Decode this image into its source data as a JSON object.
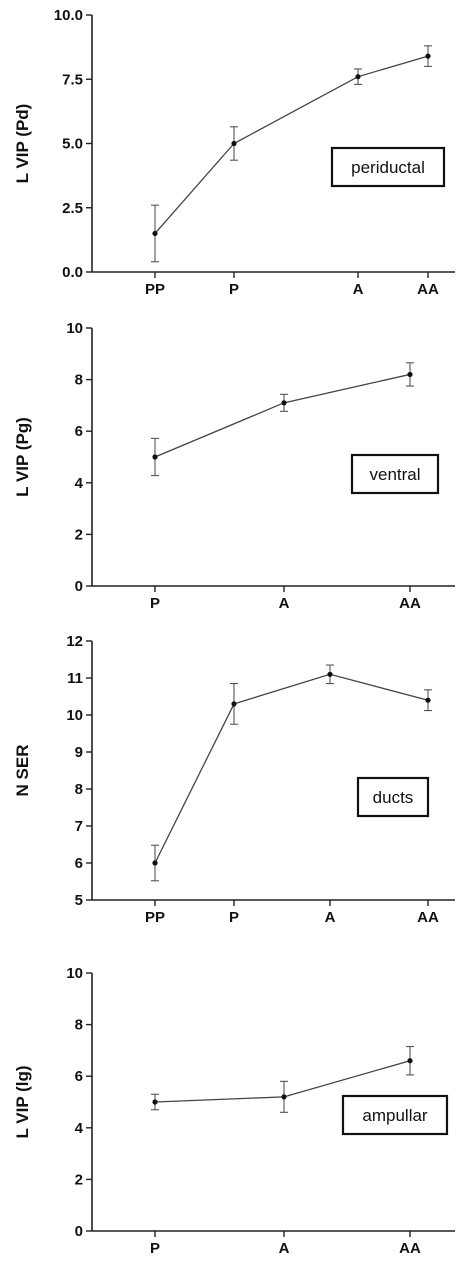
{
  "chart_data": [
    {
      "type": "line",
      "ylabel": "L VIP (Pd)",
      "annotation": "periductal",
      "categories": [
        "PP",
        "P",
        "A",
        "AA"
      ],
      "yticks": [
        "0.0",
        "2.5",
        "5.0",
        "7.5",
        "10.0"
      ],
      "ylim": [
        0,
        10
      ],
      "series": [
        {
          "values": [
            1.5,
            5.0,
            7.6,
            8.4
          ],
          "errors": [
            1.1,
            0.65,
            0.3,
            0.4
          ]
        }
      ]
    },
    {
      "type": "line",
      "ylabel": "L VIP (Pg)",
      "annotation": "ventral",
      "categories": [
        "P",
        "A",
        "AA"
      ],
      "yticks": [
        "0",
        "2",
        "4",
        "6",
        "8",
        "10"
      ],
      "ylim": [
        0,
        10
      ],
      "series": [
        {
          "values": [
            5.0,
            7.1,
            8.2
          ],
          "errors": [
            0.72,
            0.33,
            0.45
          ]
        }
      ]
    },
    {
      "type": "line",
      "ylabel": "N SER",
      "annotation": "ducts",
      "categories": [
        "PP",
        "P",
        "A",
        "AA"
      ],
      "yticks": [
        "5",
        "6",
        "7",
        "8",
        "9",
        "10",
        "11",
        "12"
      ],
      "ylim": [
        5,
        12
      ],
      "series": [
        {
          "values": [
            6.0,
            10.3,
            11.1,
            10.4
          ],
          "errors": [
            0.48,
            0.55,
            0.25,
            0.28
          ]
        }
      ]
    },
    {
      "type": "line",
      "ylabel": "L VIP (lg)",
      "annotation": "ampullar",
      "categories": [
        "P",
        "A",
        "AA"
      ],
      "yticks": [
        "0",
        "2",
        "4",
        "6",
        "8",
        "10"
      ],
      "ylim": [
        0,
        10
      ],
      "series": [
        {
          "values": [
            5.0,
            5.2,
            6.6
          ],
          "errors": [
            0.3,
            0.6,
            0.55
          ]
        }
      ]
    }
  ]
}
